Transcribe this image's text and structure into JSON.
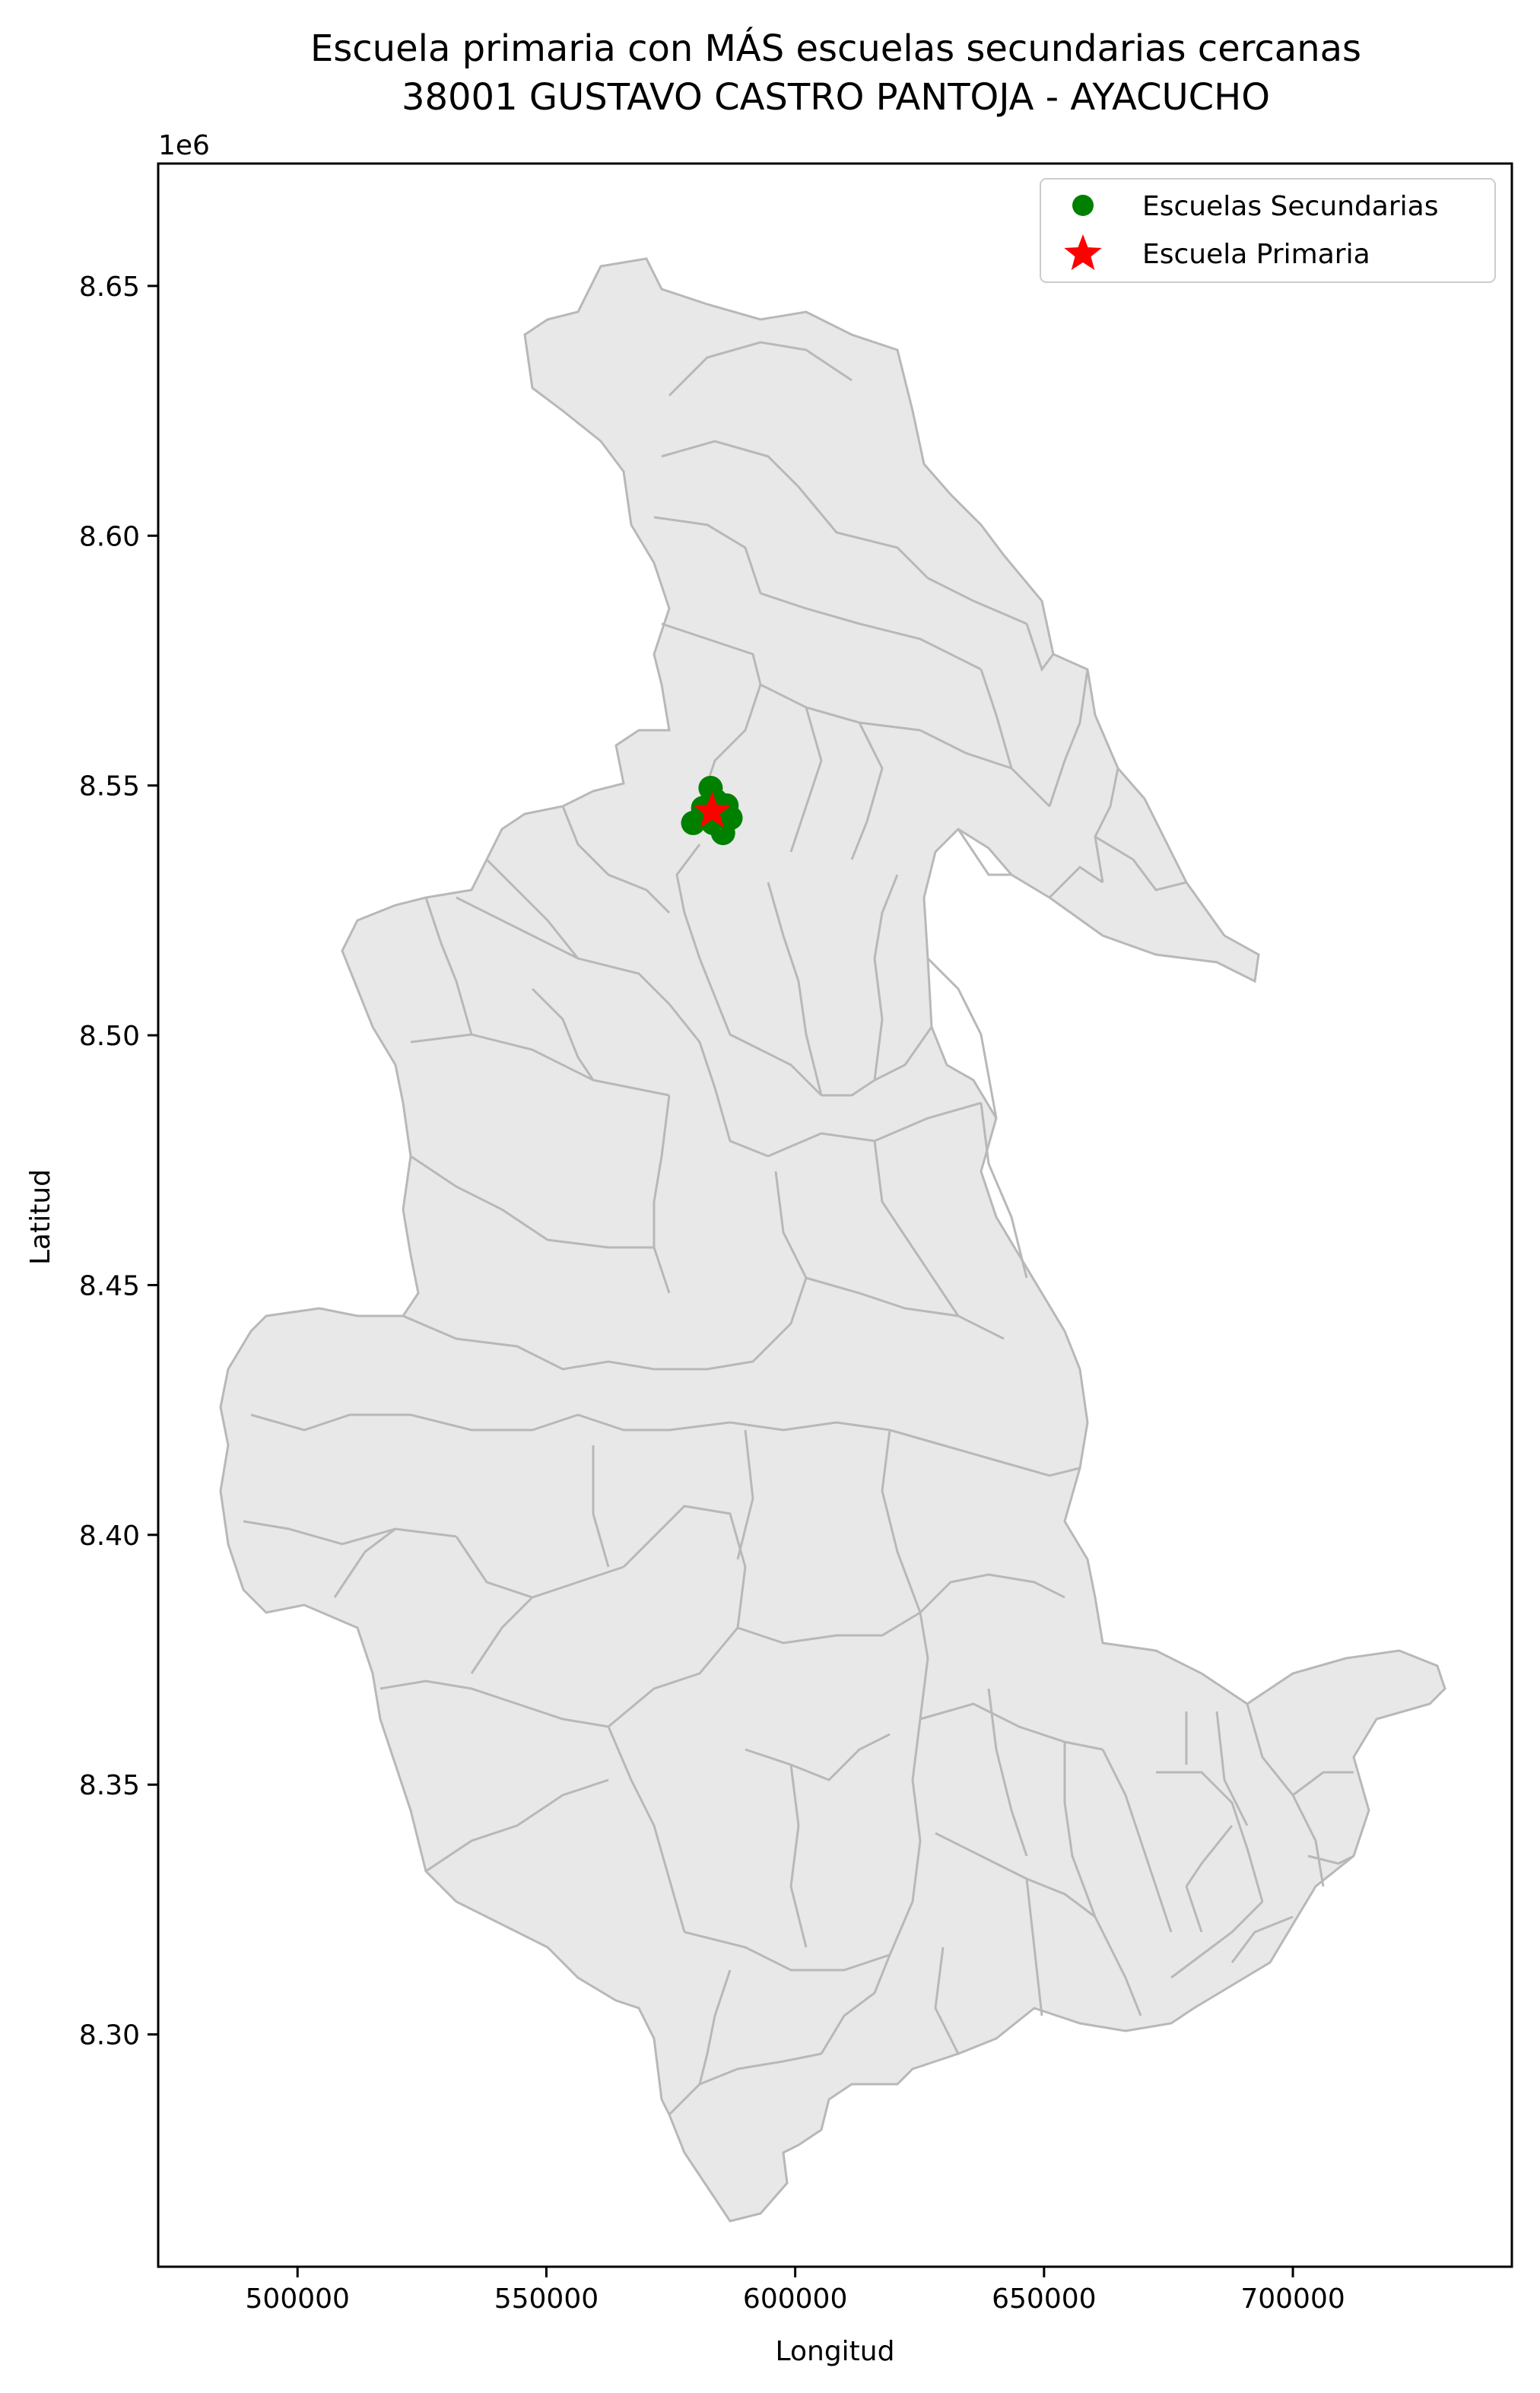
{
  "chart_data": {
    "type": "scatter",
    "title": [
      "Escuela primaria con MÁS escuelas secundarias cercanas",
      "38001 GUSTAVO CASTRO PANTOJA - AYACUCHO"
    ],
    "xlabel": "Longitud",
    "ylabel": "Latitud",
    "y_offset_label": "1e6",
    "xlim": [
      472000,
      744000
    ],
    "ylim": [
      8.2535,
      8.6745
    ],
    "xticks": [
      500000,
      550000,
      600000,
      650000,
      700000
    ],
    "yticks": [
      8.3,
      8.35,
      8.4,
      8.45,
      8.5,
      8.55,
      8.6,
      8.65
    ],
    "xtick_labels": [
      "500000",
      "550000",
      "600000",
      "650000",
      "700000"
    ],
    "ytick_labels": [
      "8.30",
      "8.35",
      "8.40",
      "8.45",
      "8.50",
      "8.55",
      "8.60",
      "8.65"
    ],
    "grid": false,
    "legend": "top-right",
    "basemap": {
      "fill": "#e8e8e8",
      "edge": "#b8b8b8"
    },
    "series": [
      {
        "name": "Escuelas Secundarias",
        "marker": "circle",
        "color": "#008000",
        "points": [
          [
            583000,
            8.5495
          ],
          [
            581500,
            8.5455
          ],
          [
            579500,
            8.5425
          ],
          [
            582300,
            8.544
          ],
          [
            584000,
            8.547
          ],
          [
            585000,
            8.544
          ],
          [
            586200,
            8.546
          ],
          [
            587000,
            8.5435
          ],
          [
            585500,
            8.5405
          ],
          [
            583500,
            8.5425
          ],
          [
            582800,
            8.546
          ],
          [
            584600,
            8.545
          ]
        ]
      },
      {
        "name": "Escuela Primaria",
        "marker": "star",
        "color": "#ff0000",
        "points": [
          [
            583300,
            8.5448
          ]
        ]
      }
    ]
  }
}
